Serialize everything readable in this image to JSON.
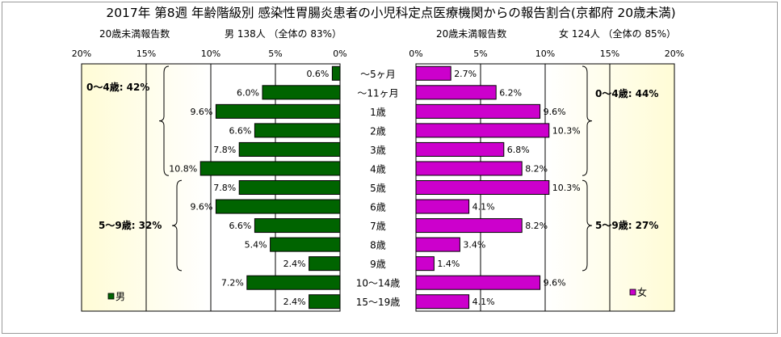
{
  "chart_data": {
    "type": "bar",
    "title": "2017年 第8週 年齢階級別 感染性胃腸炎患者の小児科定点医療機関からの報告割合(京都府 20歳未満)",
    "categories": [
      "～5ヶ月",
      "～11ヶ月",
      "1歳",
      "2歳",
      "3歳",
      "4歳",
      "5歳",
      "6歳",
      "7歳",
      "8歳",
      "9歳",
      "10～14歳",
      "15～19歳"
    ],
    "xlim": [
      0,
      20
    ],
    "ticks": [
      "0%",
      "5%",
      "10%",
      "15%",
      "20%"
    ],
    "tick_values": [
      0,
      5,
      10,
      15,
      20
    ],
    "male": {
      "header_left": "20歳未満報告数",
      "header_right": "男 138人 （全体の 83%）",
      "legend": "男",
      "color": "#006400",
      "values": [
        0.6,
        6.0,
        9.6,
        6.6,
        7.8,
        10.8,
        7.8,
        9.6,
        6.6,
        5.4,
        2.4,
        7.2,
        2.4
      ],
      "labels": [
        "0.6%",
        "6.0%",
        "9.6%",
        "6.6%",
        "7.8%",
        "10.8%",
        "7.8%",
        "9.6%",
        "6.6%",
        "5.4%",
        "2.4%",
        "7.2%",
        "2.4%"
      ],
      "group_labels": [
        "0～4歳: 42%",
        "5～9歳: 32%"
      ]
    },
    "female": {
      "header_left": "20歳未満報告数",
      "header_right": "女 124人 （全体の 85%）",
      "legend": "女",
      "color": "#cc00cc",
      "values": [
        2.7,
        6.2,
        9.6,
        10.3,
        6.8,
        8.2,
        10.3,
        4.1,
        8.2,
        3.4,
        1.4,
        9.6,
        4.1
      ],
      "labels": [
        "2.7%",
        "6.2%",
        "9.6%",
        "10.3%",
        "6.8%",
        "8.2%",
        "10.3%",
        "4.1%",
        "8.2%",
        "3.4%",
        "1.4%",
        "9.6%",
        "4.1%"
      ],
      "group_labels": [
        "0～4歳: 44%",
        "5～9歳: 27%"
      ]
    }
  }
}
